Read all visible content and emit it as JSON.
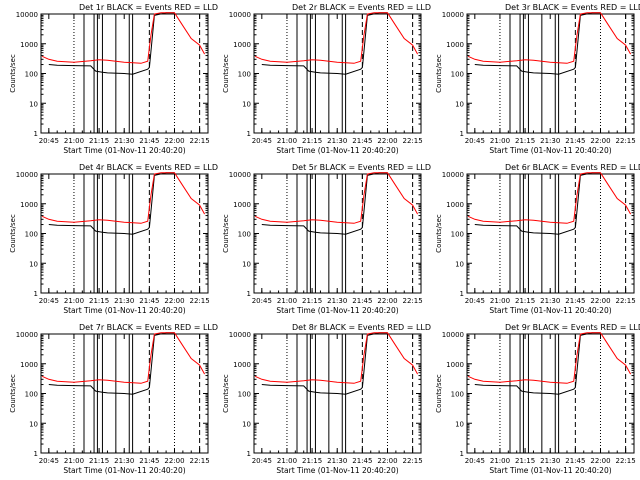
{
  "colors": {
    "background": "#ffffff",
    "axes": "#000000",
    "events": "#000000",
    "lld": "#ff0000"
  },
  "chart_data": {
    "type": "line",
    "layout": "3x3 grid of panels",
    "yscale": "log",
    "ylim": [
      1,
      10000
    ],
    "xlim": [
      "20:40:20",
      "22:20"
    ],
    "yticks": [
      "1",
      "10",
      "100",
      "1000",
      "10000"
    ],
    "xticks": [
      "20:45",
      "21:00",
      "21:15",
      "21:30",
      "21:45",
      "22:00",
      "22:15"
    ],
    "ylabel": "Counts/sec",
    "xlabel": "Start Time (01-Nov-11 20:40:20)",
    "dotted_lines": [
      "21:00",
      "22:00"
    ],
    "dashed_lines": [
      "21:45",
      "22:15"
    ],
    "panels": [
      {
        "title": "Det 1r BLACK = Events RED = LLD"
      },
      {
        "title": "Det 2r BLACK = Events RED = LLD"
      },
      {
        "title": "Det 3r BLACK = Events RED = LLD"
      },
      {
        "title": "Det 4r BLACK = Events RED = LLD"
      },
      {
        "title": "Det 5r BLACK = Events RED = LLD"
      },
      {
        "title": "Det 6r BLACK = Events RED = LLD"
      },
      {
        "title": "Det 7r BLACK = Events RED = LLD"
      },
      {
        "title": "Det 8r BLACK = Events RED = LLD"
      },
      {
        "title": "Det 9r BLACK = Events RED = LLD"
      }
    ],
    "series": [
      {
        "name": "Events",
        "color": "#000000",
        "x": [
          "20:45",
          "20:50",
          "21:00",
          "21:10",
          "21:13",
          "21:17",
          "21:20",
          "21:30",
          "21:35",
          "21:44",
          "21:45",
          "21:48",
          "21:55",
          "22:00"
        ],
        "values": [
          200,
          190,
          185,
          180,
          120,
          110,
          105,
          100,
          95,
          140,
          160,
          9000,
          12000,
          12000
        ]
      },
      {
        "name": "LLD",
        "color": "#ff0000",
        "x": [
          "20:41",
          "20:45",
          "20:50",
          "21:00",
          "21:10",
          "21:15",
          "21:20",
          "21:30",
          "21:40",
          "21:44",
          "21:46",
          "21:48",
          "21:52",
          "22:00",
          "22:05",
          "22:10",
          "22:15",
          "22:18"
        ],
        "values": [
          380,
          300,
          260,
          240,
          270,
          290,
          280,
          240,
          220,
          260,
          2000,
          10000,
          12000,
          11500,
          4000,
          1500,
          900,
          450
        ]
      }
    ]
  }
}
